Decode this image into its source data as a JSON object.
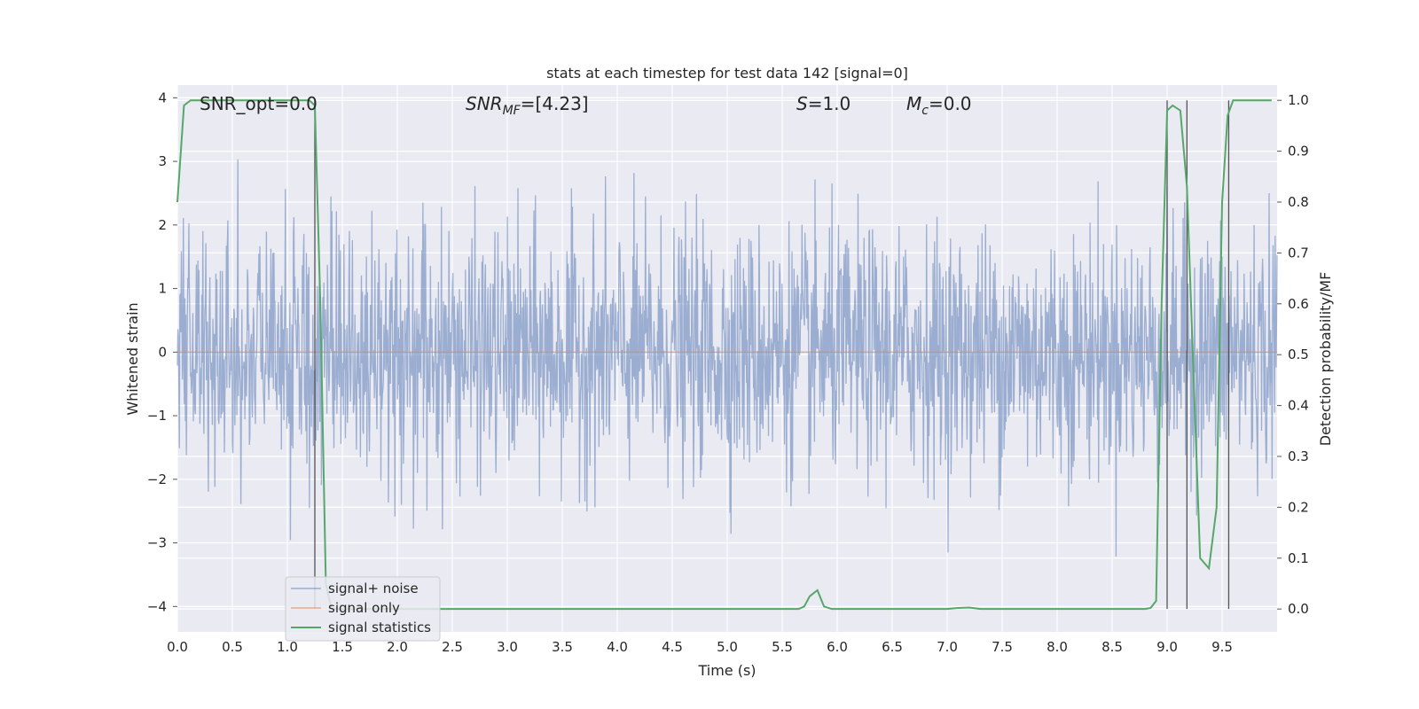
{
  "chart_data": {
    "type": "line",
    "title": "stats at each timestep for test data 142 [signal=0]",
    "xlabel": "Time (s)",
    "ylabel": "Whitened strain",
    "y2label": "Detection probability/MF",
    "xlim": [
      0.0,
      10.0
    ],
    "ylim": [
      -4.4,
      4.2
    ],
    "y2lim": [
      -0.045,
      1.03
    ],
    "x_ticks": [
      "0.0",
      "0.5",
      "1.0",
      "1.5",
      "2.0",
      "2.5",
      "3.0",
      "3.5",
      "4.0",
      "4.5",
      "5.0",
      "5.5",
      "6.0",
      "6.5",
      "7.0",
      "7.5",
      "8.0",
      "8.5",
      "9.0",
      "9.5"
    ],
    "y_ticks": [
      "−4",
      "−3",
      "−2",
      "−1",
      "0",
      "1",
      "2",
      "3",
      "4"
    ],
    "y2_ticks": [
      "0.0",
      "0.1",
      "0.2",
      "0.3",
      "0.4",
      "0.5",
      "0.6",
      "0.7",
      "0.8",
      "0.9",
      "1.0"
    ],
    "grid": true,
    "legend_position": "lower-left",
    "annotations": {
      "snr_opt": "SNR_opt=0.0",
      "snr_mf_main": "SNR",
      "snr_mf_sub": "MF",
      "snr_mf_value": "=[4.23]",
      "s_main": "S",
      "s_value": "=1.0",
      "mc_main": "M",
      "mc_sub": "c",
      "mc_value": "=0.0"
    },
    "series": [
      {
        "name": "signal+ noise",
        "color": "#4c72b0",
        "description_kind": "noise",
        "amplitude_std": 0.95
      },
      {
        "name": "signal only",
        "color": "#dd8452",
        "constant_value": 0.0
      },
      {
        "name": "signal statistics",
        "color": "#55a868",
        "axis": "right",
        "x": [
          0.0,
          0.06,
          0.12,
          0.2,
          0.5,
          0.8,
          1.0,
          1.1,
          1.2,
          1.25,
          1.3,
          1.35,
          1.4,
          1.5,
          2.0,
          3.0,
          4.0,
          5.0,
          5.5,
          5.65,
          5.7,
          5.75,
          5.82,
          5.88,
          5.95,
          6.0,
          6.5,
          7.0,
          7.1,
          7.2,
          7.3,
          7.5,
          8.0,
          8.5,
          8.8,
          8.85,
          8.9,
          8.95,
          9.0,
          9.05,
          9.12,
          9.18,
          9.25,
          9.3,
          9.38,
          9.45,
          9.5,
          9.55,
          9.6,
          9.65,
          9.7,
          9.75,
          9.8,
          9.95
        ],
        "values": [
          0.8,
          0.99,
          1.0,
          1.0,
          1.0,
          1.0,
          1.0,
          1.0,
          1.0,
          0.99,
          0.6,
          0.05,
          0.0,
          0.0,
          0.0,
          0.0,
          0.0,
          0.0,
          0.0,
          0.0,
          0.005,
          0.025,
          0.037,
          0.005,
          0.0,
          0.0,
          0.0,
          0.0,
          0.002,
          0.003,
          0.0,
          0.0,
          0.0,
          0.0,
          0.0,
          0.002,
          0.016,
          0.6,
          0.98,
          0.99,
          0.98,
          0.83,
          0.4,
          0.1,
          0.08,
          0.2,
          0.8,
          0.97,
          1.0,
          1.0,
          1.0,
          1.0,
          1.0,
          1.0
        ]
      }
    ],
    "vertical_lines_x": [
      1.25,
      9.0,
      9.18,
      9.56
    ]
  }
}
